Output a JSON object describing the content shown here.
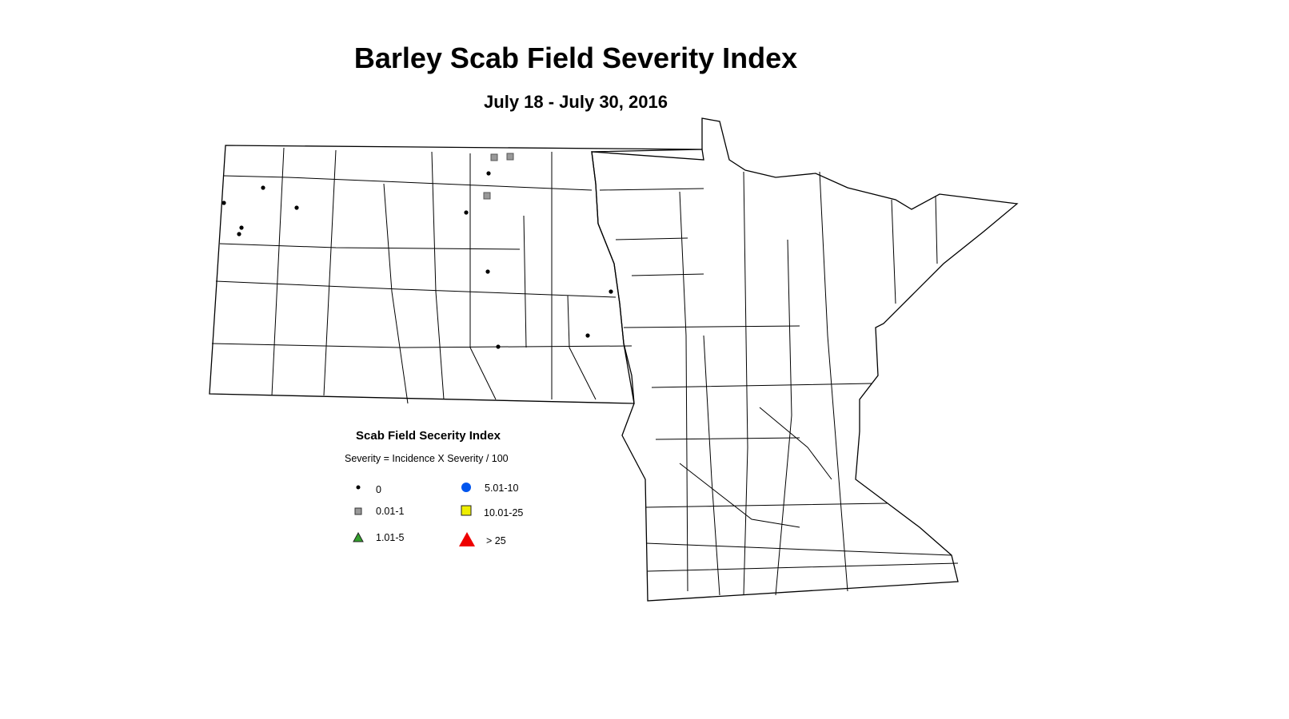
{
  "title": "Barley Scab Field Severity Index",
  "subtitle": "July 18 - July 30, 2016",
  "legend": {
    "title": "Scab Field Secerity Index",
    "formula": "Severity = Incidence X Severity / 100",
    "items": [
      {
        "label": "0",
        "symbol": "small-dot",
        "color": "#000000"
      },
      {
        "label": "0.01-1",
        "symbol": "square",
        "color": "#999999"
      },
      {
        "label": "1.01-5",
        "symbol": "triangle",
        "color": "#33a02c"
      },
      {
        "label": "5.01-10",
        "symbol": "circle",
        "color": "#0055ee"
      },
      {
        "label": "10.01-25",
        "symbol": "square",
        "color": "#eeee00"
      },
      {
        "label": "> 25",
        "symbol": "triangle",
        "color": "#ee0000"
      }
    ]
  },
  "observations_by_category": {
    "0": 11,
    "0.01-1": 3,
    "1.01-5": 0,
    "5.01-10": 0,
    "10.01-25": 0,
    "> 25": 0
  },
  "states": [
    "North Dakota",
    "Minnesota"
  ]
}
